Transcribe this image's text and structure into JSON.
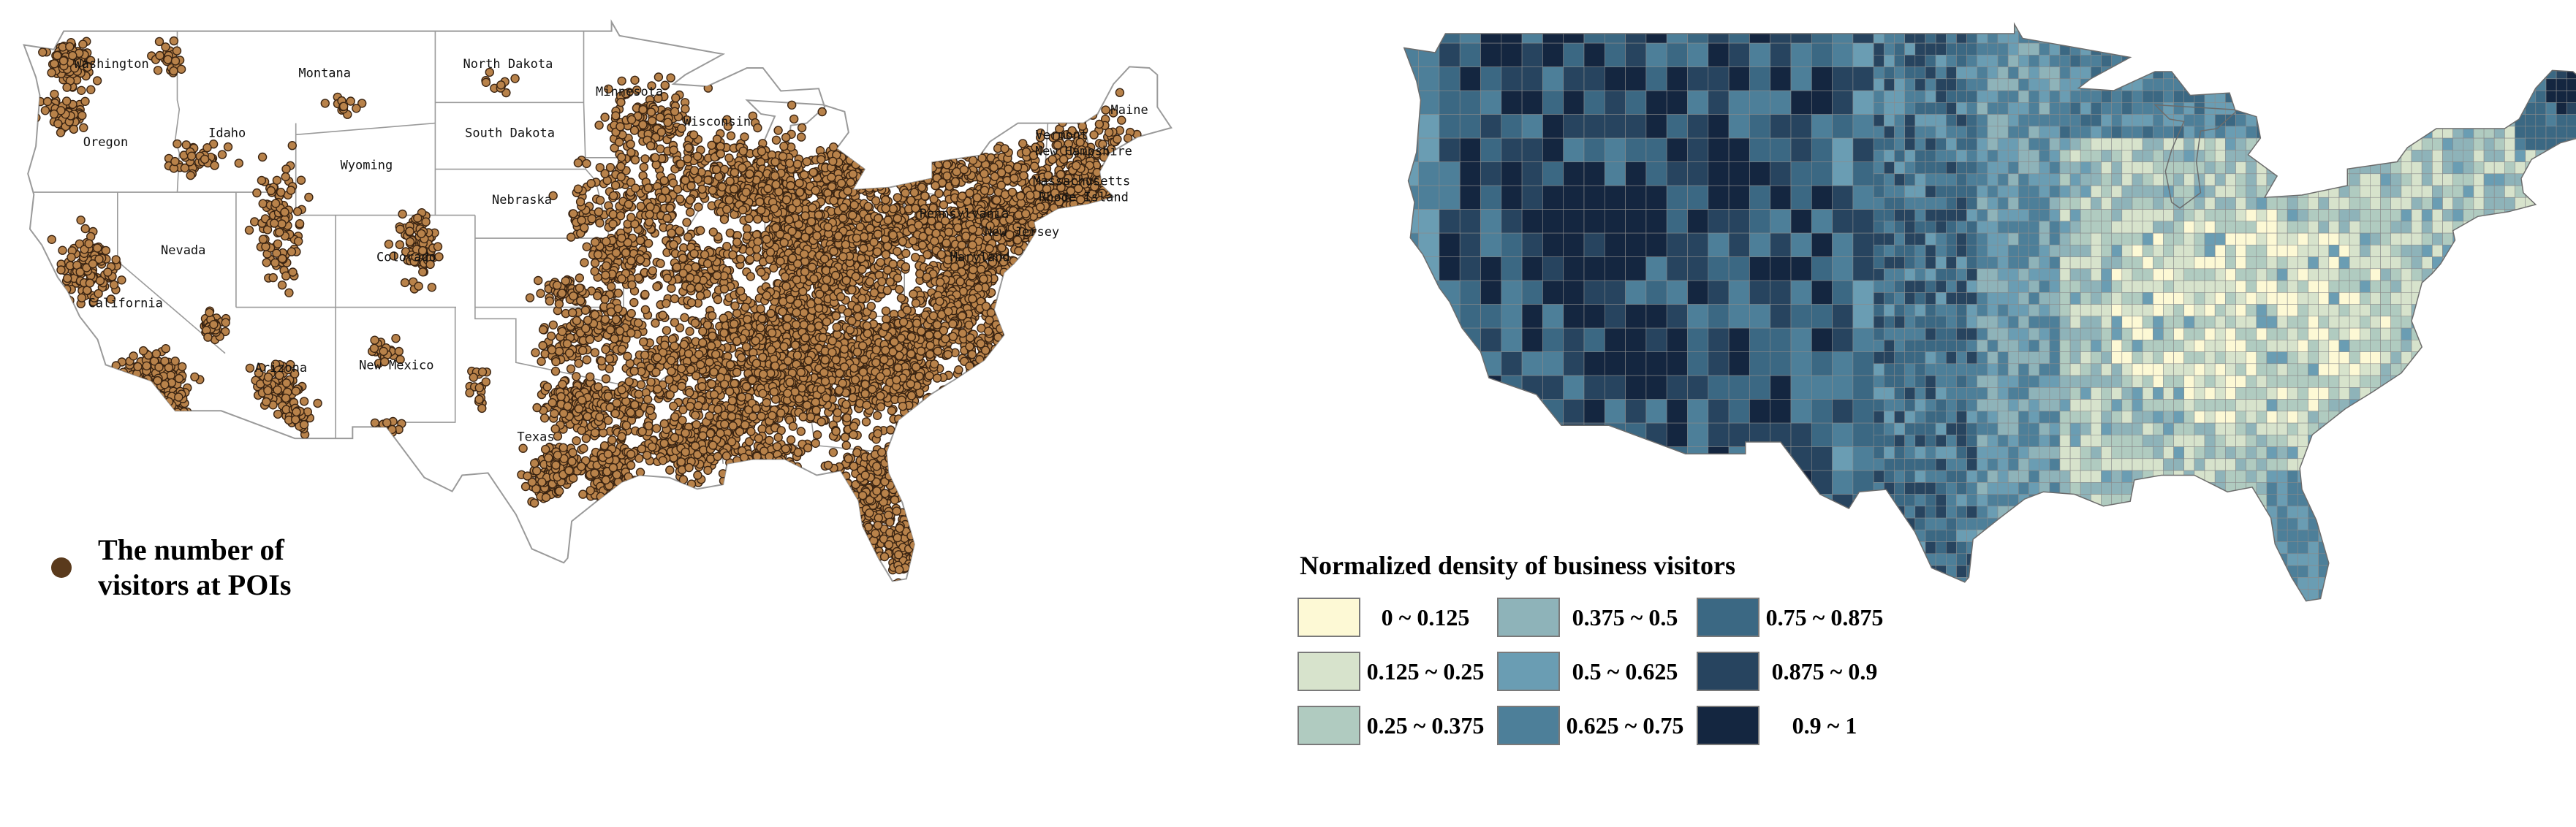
{
  "left_map": {
    "state_labels": [
      {
        "name": "Washington",
        "lon": -120.3,
        "lat": 47.4
      },
      {
        "name": "Montana",
        "lon": -109.6,
        "lat": 47.0
      },
      {
        "name": "North Dakota",
        "lon": -100.4,
        "lat": 47.4
      },
      {
        "name": "Minnesota",
        "lon": -94.3,
        "lat": 46.2
      },
      {
        "name": "Oregon",
        "lon": -120.6,
        "lat": 44.0
      },
      {
        "name": "Idaho",
        "lon": -114.5,
        "lat": 44.4
      },
      {
        "name": "South Dakota",
        "lon": -100.3,
        "lat": 44.4
      },
      {
        "name": "Wisconsin",
        "lon": -89.9,
        "lat": 44.9
      },
      {
        "name": "Wyoming",
        "lon": -107.5,
        "lat": 43.0
      },
      {
        "name": "Nebraska",
        "lon": -99.7,
        "lat": 41.5
      },
      {
        "name": "Nevada",
        "lon": -116.7,
        "lat": 39.3
      },
      {
        "name": "Colorado",
        "lon": -105.5,
        "lat": 39.0
      },
      {
        "name": "California",
        "lon": -119.6,
        "lat": 37.0
      },
      {
        "name": "Arizona",
        "lon": -111.8,
        "lat": 34.2
      },
      {
        "name": "New Mexico",
        "lon": -106.0,
        "lat": 34.3
      },
      {
        "name": "Texas",
        "lon": -99.0,
        "lat": 31.2
      },
      {
        "name": "Maine",
        "lon": -69.2,
        "lat": 45.4
      },
      {
        "name": "Vermont",
        "lon": -72.6,
        "lat": 44.3
      },
      {
        "name": "New Hampshire",
        "lon": -71.5,
        "lat": 43.6
      },
      {
        "name": "Massachusetts",
        "lon": -71.6,
        "lat": 42.3
      },
      {
        "name": "Rhode Island",
        "lon": -71.5,
        "lat": 41.6
      },
      {
        "name": "New Jersey",
        "lon": -74.6,
        "lat": 40.1
      },
      {
        "name": "Pennsylvania",
        "lon": -77.5,
        "lat": 40.9
      },
      {
        "name": "Maryland",
        "lon": -76.7,
        "lat": 39.0
      }
    ],
    "legend_label_line1": "The number of",
    "legend_label_line2": "visitors at POIs",
    "dot_color": "#b8824a",
    "dot_stroke": "#3a2412",
    "legend_dot_color": "#5a3a1c",
    "land_color": "#ffffff",
    "border_color": "#9a9a9a"
  },
  "right_map": {
    "legend_title": "Normalized density of business visitors",
    "classes": [
      {
        "label": "0 ~ 0.125",
        "color": "#fdf9d5"
      },
      {
        "label": "0.125 ~ 0.25",
        "color": "#d7e3cc"
      },
      {
        "label": "0.25 ~ 0.375",
        "color": "#b0cbc0"
      },
      {
        "label": "0.375 ~ 0.5",
        "color": "#8eb3b9"
      },
      {
        "label": "0.5 ~ 0.625",
        "color": "#6a9db3"
      },
      {
        "label": "0.625 ~ 0.75",
        "color": "#4d7f99"
      },
      {
        "label": "0.75 ~ 0.875",
        "color": "#3b6883"
      },
      {
        "label": "0.875 ~ 0.9",
        "color": "#27445f"
      },
      {
        "label": "0.9 ~ 1",
        "color": "#142640"
      }
    ],
    "county_border_color": "#8a8a8a"
  }
}
